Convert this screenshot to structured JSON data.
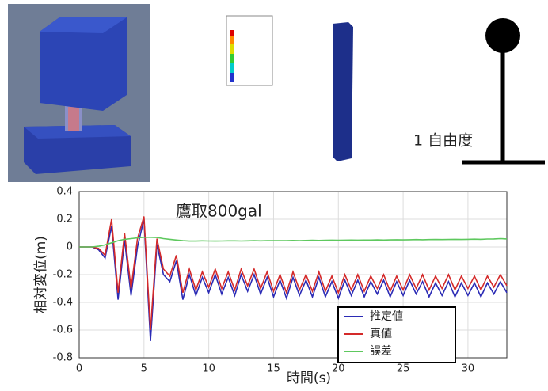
{
  "diagram": {
    "label": "1 自由度"
  },
  "chart_data": {
    "type": "line",
    "annotation": "鷹取800gal",
    "xlabel": "時間(s)",
    "ylabel": "相対変位(m)",
    "x": [
      0,
      0.5,
      1,
      1.5,
      2,
      2.5,
      3,
      3.5,
      4,
      4.5,
      5,
      5.5,
      6,
      6.5,
      7,
      7.5,
      8,
      8.5,
      9,
      9.5,
      10,
      10.5,
      11,
      11.5,
      12,
      12.5,
      13,
      13.5,
      14,
      14.5,
      15,
      15.5,
      16,
      16.5,
      17,
      17.5,
      18,
      18.5,
      19,
      19.5,
      20,
      20.5,
      21,
      21.5,
      22,
      22.5,
      23,
      23.5,
      24,
      24.5,
      25,
      25.5,
      26,
      26.5,
      27,
      27.5,
      28,
      28.5,
      29,
      29.5,
      30,
      30.5,
      31,
      31.5,
      32,
      32.5,
      33
    ],
    "series": [
      {
        "name": "推定値",
        "color": "#2b2bb5",
        "values": [
          0,
          0,
          0,
          -0.02,
          -0.08,
          0.15,
          -0.38,
          0.05,
          -0.35,
          0.0,
          0.2,
          -0.68,
          0.02,
          -0.2,
          -0.25,
          -0.1,
          -0.38,
          -0.2,
          -0.35,
          -0.22,
          -0.33,
          -0.2,
          -0.34,
          -0.22,
          -0.35,
          -0.2,
          -0.32,
          -0.2,
          -0.34,
          -0.22,
          -0.36,
          -0.24,
          -0.37,
          -0.22,
          -0.35,
          -0.24,
          -0.36,
          -0.22,
          -0.36,
          -0.25,
          -0.37,
          -0.24,
          -0.35,
          -0.24,
          -0.36,
          -0.25,
          -0.34,
          -0.24,
          -0.36,
          -0.25,
          -0.35,
          -0.24,
          -0.34,
          -0.25,
          -0.36,
          -0.26,
          -0.35,
          -0.25,
          -0.36,
          -0.26,
          -0.35,
          -0.26,
          -0.36,
          -0.26,
          -0.34,
          -0.25,
          -0.33
        ]
      },
      {
        "name": "真値",
        "color": "#d42a2a",
        "values": [
          0,
          0,
          0,
          -0.01,
          -0.06,
          0.2,
          -0.33,
          0.1,
          -0.3,
          0.06,
          0.22,
          -0.6,
          0.06,
          -0.16,
          -0.21,
          -0.06,
          -0.33,
          -0.16,
          -0.31,
          -0.18,
          -0.29,
          -0.16,
          -0.3,
          -0.18,
          -0.31,
          -0.16,
          -0.28,
          -0.16,
          -0.3,
          -0.18,
          -0.32,
          -0.2,
          -0.33,
          -0.18,
          -0.31,
          -0.2,
          -0.32,
          -0.18,
          -0.32,
          -0.21,
          -0.33,
          -0.2,
          -0.31,
          -0.2,
          -0.32,
          -0.21,
          -0.3,
          -0.2,
          -0.32,
          -0.21,
          -0.31,
          -0.2,
          -0.3,
          -0.2,
          -0.31,
          -0.21,
          -0.3,
          -0.2,
          -0.31,
          -0.21,
          -0.3,
          -0.21,
          -0.31,
          -0.21,
          -0.29,
          -0.2,
          -0.28
        ]
      },
      {
        "name": "誤差",
        "color": "#5ec85e",
        "values": [
          0,
          0,
          0,
          0.005,
          0.015,
          0.03,
          0.045,
          0.055,
          0.06,
          0.065,
          0.07,
          0.07,
          0.068,
          0.06,
          0.055,
          0.05,
          0.045,
          0.042,
          0.042,
          0.044,
          0.043,
          0.042,
          0.043,
          0.044,
          0.044,
          0.043,
          0.044,
          0.045,
          0.044,
          0.045,
          0.046,
          0.045,
          0.046,
          0.047,
          0.046,
          0.047,
          0.048,
          0.047,
          0.048,
          0.049,
          0.048,
          0.049,
          0.05,
          0.049,
          0.05,
          0.05,
          0.051,
          0.05,
          0.051,
          0.052,
          0.051,
          0.052,
          0.053,
          0.052,
          0.053,
          0.054,
          0.053,
          0.054,
          0.055,
          0.054,
          0.055,
          0.056,
          0.055,
          0.057,
          0.058,
          0.06,
          0.058
        ]
      }
    ],
    "xlim": [
      0,
      33
    ],
    "ylim": [
      -0.8,
      0.4
    ],
    "xticks": [
      0,
      5,
      10,
      15,
      20,
      25,
      30
    ],
    "yticks": [
      0.4,
      0.2,
      0,
      -0.2,
      -0.4,
      -0.6,
      -0.8
    ],
    "grid": true,
    "legend": "lower right"
  }
}
